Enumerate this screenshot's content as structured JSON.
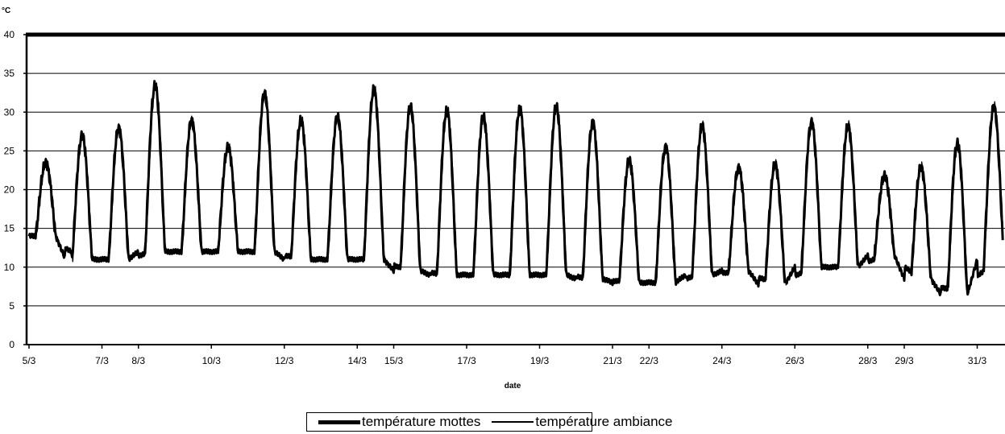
{
  "chart_data": {
    "type": "line",
    "title": "",
    "ylabel": "°C",
    "xlabel": "date",
    "ylim": [
      0,
      40
    ],
    "yticks": [
      0,
      5,
      10,
      15,
      20,
      25,
      30,
      35,
      40
    ],
    "grid": true,
    "legend_position": "bottom",
    "x_tick_labels": [
      "5/3",
      "7/3",
      "8/3",
      "10/3",
      "12/3",
      "14/3",
      "15/3",
      "17/3",
      "19/3",
      "21/3",
      "22/3",
      "24/3",
      "26/3",
      "28/3",
      "29/3",
      "31/3"
    ],
    "x_tick_positions_days": [
      0,
      2,
      3,
      5,
      7,
      9,
      10,
      12,
      14,
      16,
      17,
      19,
      21,
      23,
      24,
      26
    ],
    "x_range_days": [
      0,
      26.7
    ],
    "daily_cycles": [
      {
        "day": 0,
        "min": 14,
        "max": 23.5
      },
      {
        "day": 1,
        "min": 11,
        "max": 27
      },
      {
        "day": 2,
        "min": 11,
        "max": 28
      },
      {
        "day": 3,
        "min": 12,
        "max": 33.5
      },
      {
        "day": 4,
        "min": 12,
        "max": 29
      },
      {
        "day": 5,
        "min": 12,
        "max": 25.5
      },
      {
        "day": 6,
        "min": 12,
        "max": 32.5
      },
      {
        "day": 7,
        "min": 11,
        "max": 29
      },
      {
        "day": 8,
        "min": 11,
        "max": 29.5
      },
      {
        "day": 9,
        "min": 11,
        "max": 33
      },
      {
        "day": 10,
        "min": 9.5,
        "max": 30.8
      },
      {
        "day": 11,
        "min": 9,
        "max": 30.3
      },
      {
        "day": 12,
        "min": 9,
        "max": 29.5
      },
      {
        "day": 13,
        "min": 9,
        "max": 30.5
      },
      {
        "day": 14,
        "min": 9,
        "max": 30.8
      },
      {
        "day": 15,
        "min": 8.5,
        "max": 28.7
      },
      {
        "day": 16,
        "min": 8,
        "max": 23.8
      },
      {
        "day": 17,
        "min": 8,
        "max": 25.5
      },
      {
        "day": 18,
        "min": 9,
        "max": 28.3
      },
      {
        "day": 19,
        "min": 9.5,
        "max": 22.8
      },
      {
        "day": 20,
        "min": 7.8,
        "max": 23.3
      },
      {
        "day": 21,
        "min": 10,
        "max": 28.7
      },
      {
        "day": 22,
        "min": 10,
        "max": 28.3
      },
      {
        "day": 23,
        "min": 11.5,
        "max": 21.8
      },
      {
        "day": 24,
        "min": 8.5,
        "max": 23
      },
      {
        "day": 25,
        "min": 6.5,
        "max": 26
      },
      {
        "day": 26,
        "min": 11,
        "max": 30.8
      }
    ],
    "series": [
      {
        "name": "température mottes",
        "color": "#000000",
        "line": "thick"
      },
      {
        "name": "température ambiance",
        "color": "#000000",
        "line": "thin"
      }
    ]
  }
}
